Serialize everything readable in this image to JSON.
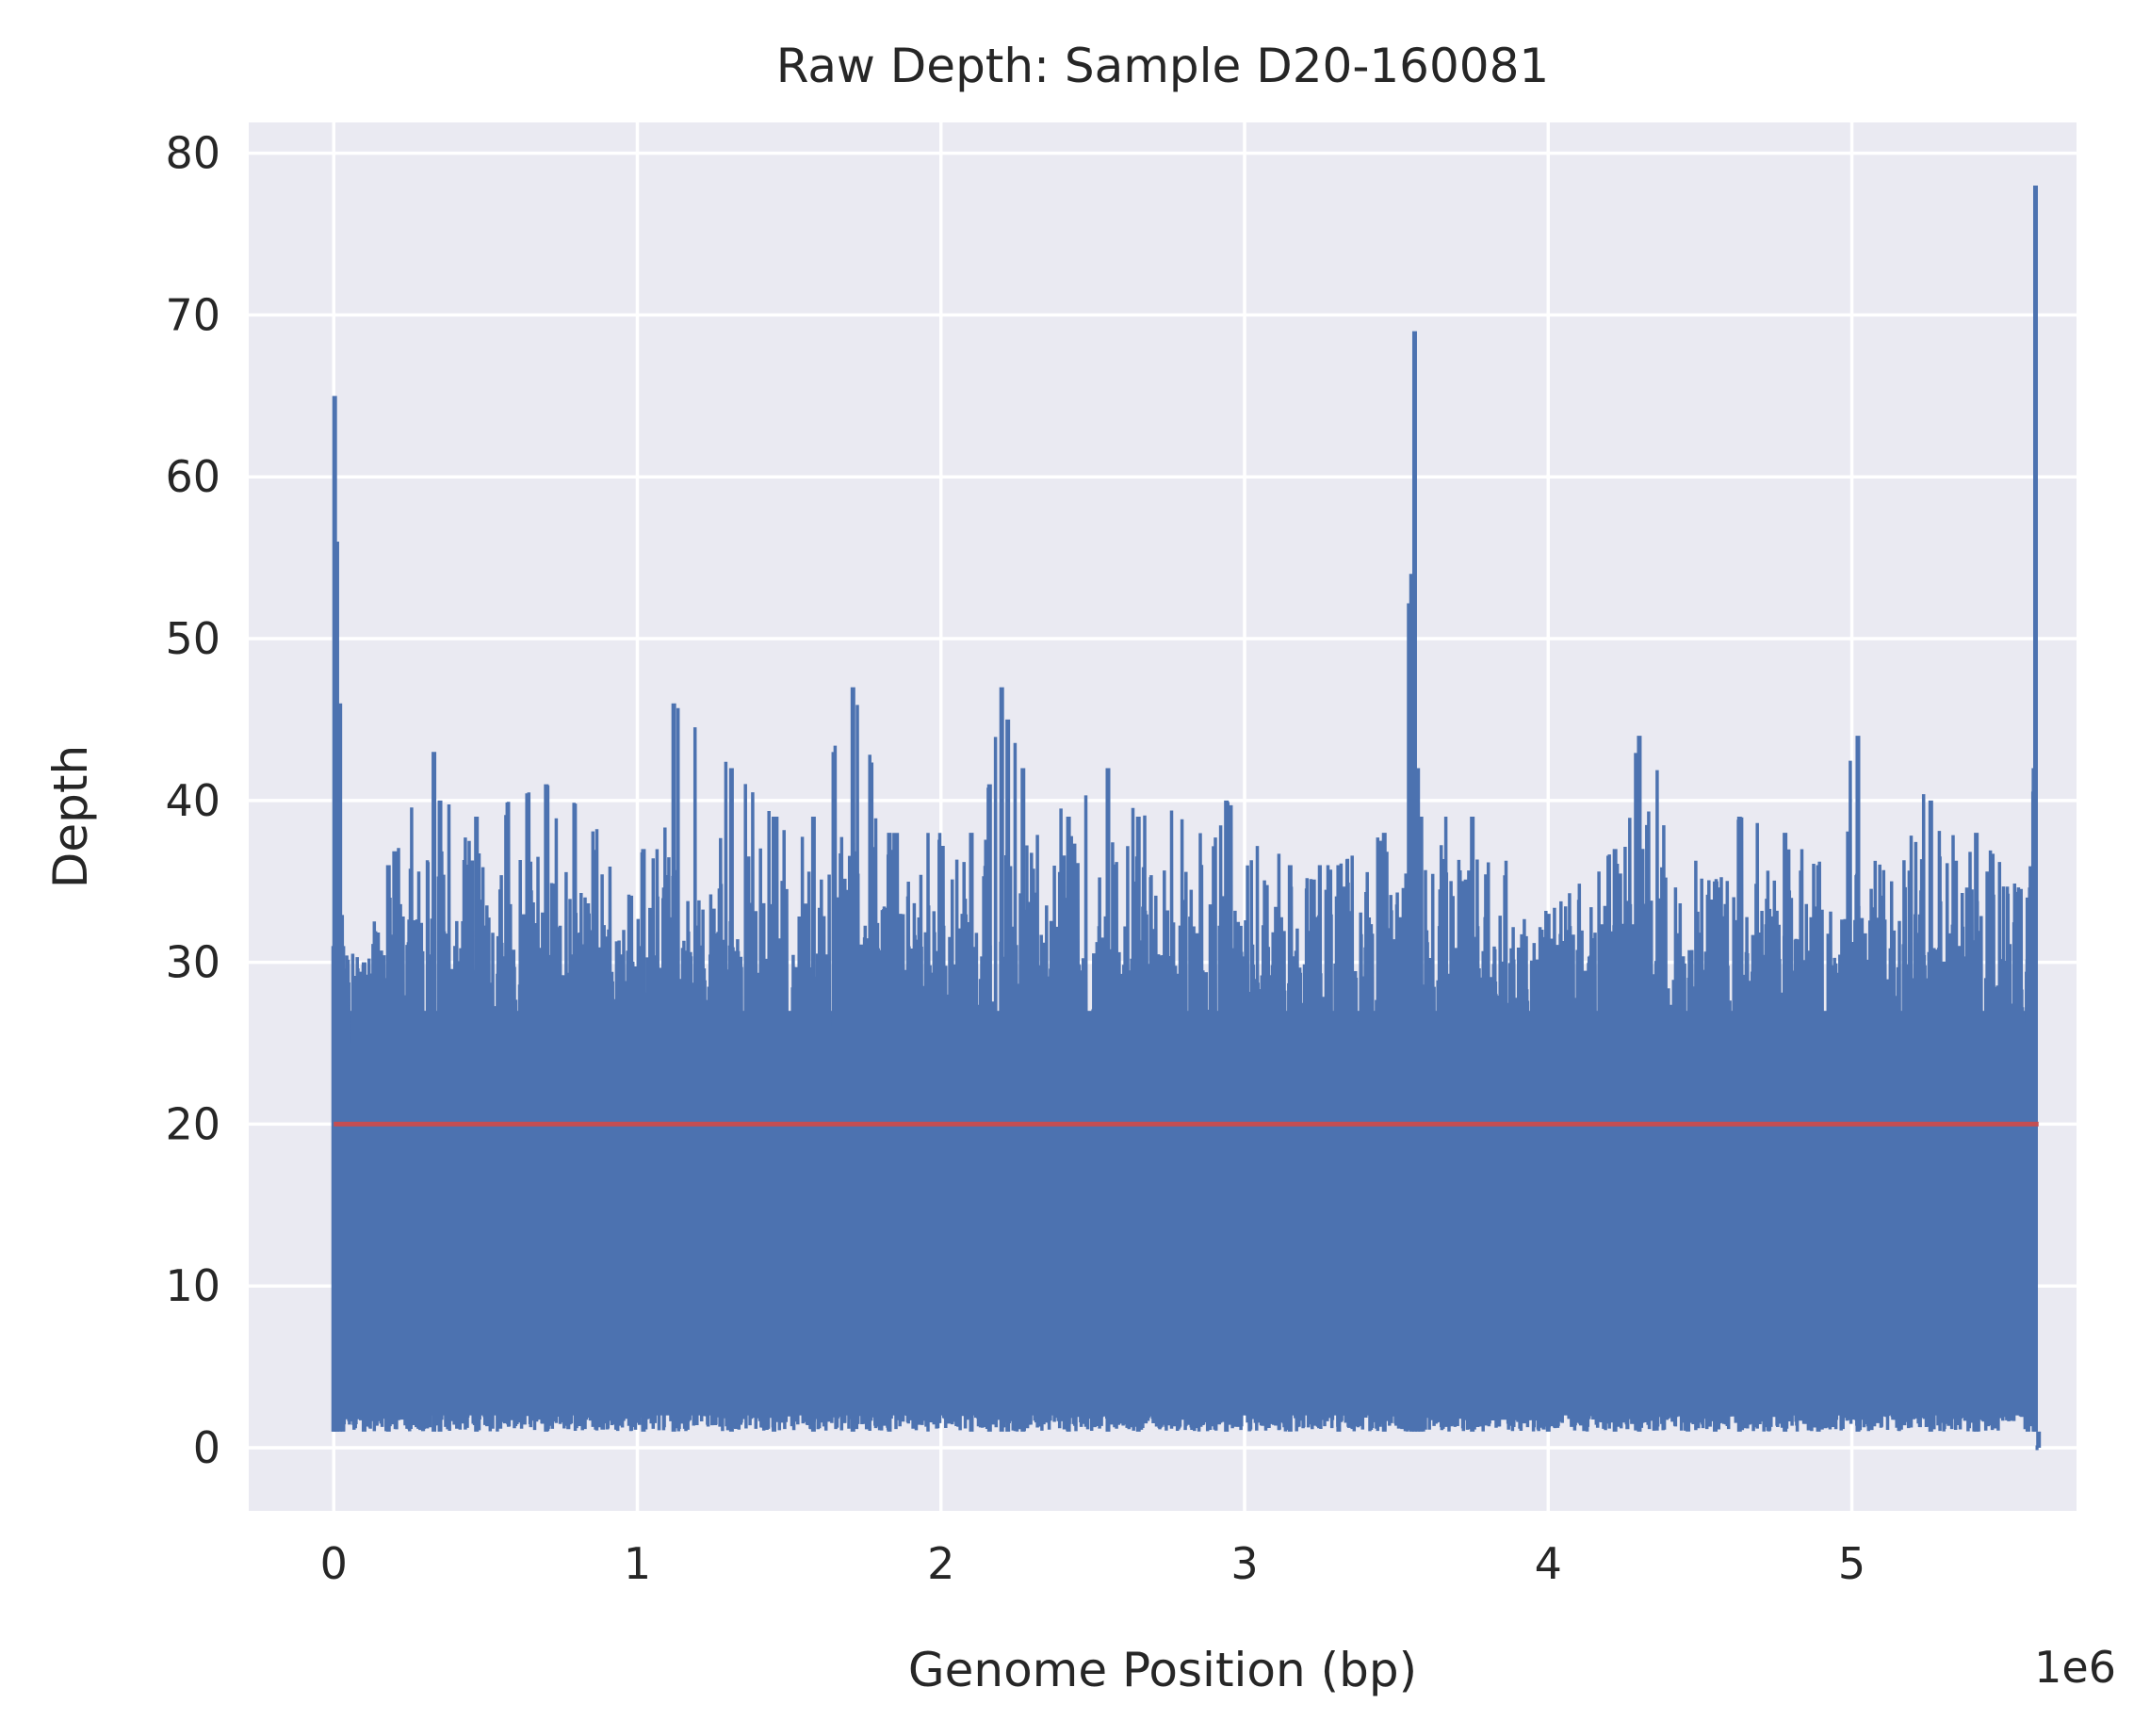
{
  "chart_data": {
    "type": "line",
    "title": "Raw Depth: Sample D20-160081",
    "xlabel": "Genome Position (bp)",
    "ylabel": "Depth",
    "x_offset_label": "1e6",
    "xlim": [
      -0.28,
      5.74
    ],
    "ylim": [
      -3.9,
      81.9
    ],
    "xticks": [
      0,
      1,
      2,
      3,
      4,
      5
    ],
    "yticks": [
      0,
      10,
      20,
      30,
      40,
      50,
      60,
      70,
      80
    ],
    "grid": true,
    "background": "#eaeaf2",
    "series": [
      {
        "color": "#4c72b0",
        "baseline": [
          1,
          30
        ],
        "x": [
          0.0,
          0.003,
          0.01,
          0.02,
          0.03,
          0.1,
          0.18,
          0.33,
          0.35,
          0.47,
          0.7,
          1.02,
          1.12,
          1.31,
          1.45,
          1.58,
          1.71,
          1.83,
          2.1,
          2.16,
          2.2,
          2.22,
          2.27,
          2.42,
          2.55,
          2.65,
          2.94,
          3.15,
          3.31,
          3.46,
          3.55,
          3.56,
          3.57,
          3.58,
          3.75,
          4.0,
          4.22,
          4.3,
          4.55,
          4.63,
          4.78,
          4.89,
          5.02,
          5.26,
          5.41,
          5.58,
          5.6,
          5.605,
          5.615
        ],
        "y": [
          31,
          65,
          56,
          46,
          31,
          30,
          36,
          43,
          40,
          39,
          41,
          37,
          46,
          42,
          39,
          39,
          47,
          38,
          38,
          41,
          47,
          45,
          42,
          39,
          42,
          39,
          40,
          36,
          36,
          38,
          54,
          69,
          42,
          39,
          39,
          33,
          37,
          44,
          35,
          39,
          38,
          36,
          44,
          40,
          38,
          34,
          42,
          78,
          0
        ]
      },
      {
        "color": "#c44e52",
        "x": [
          0.0,
          5.615
        ],
        "y": [
          20,
          20
        ]
      }
    ]
  }
}
